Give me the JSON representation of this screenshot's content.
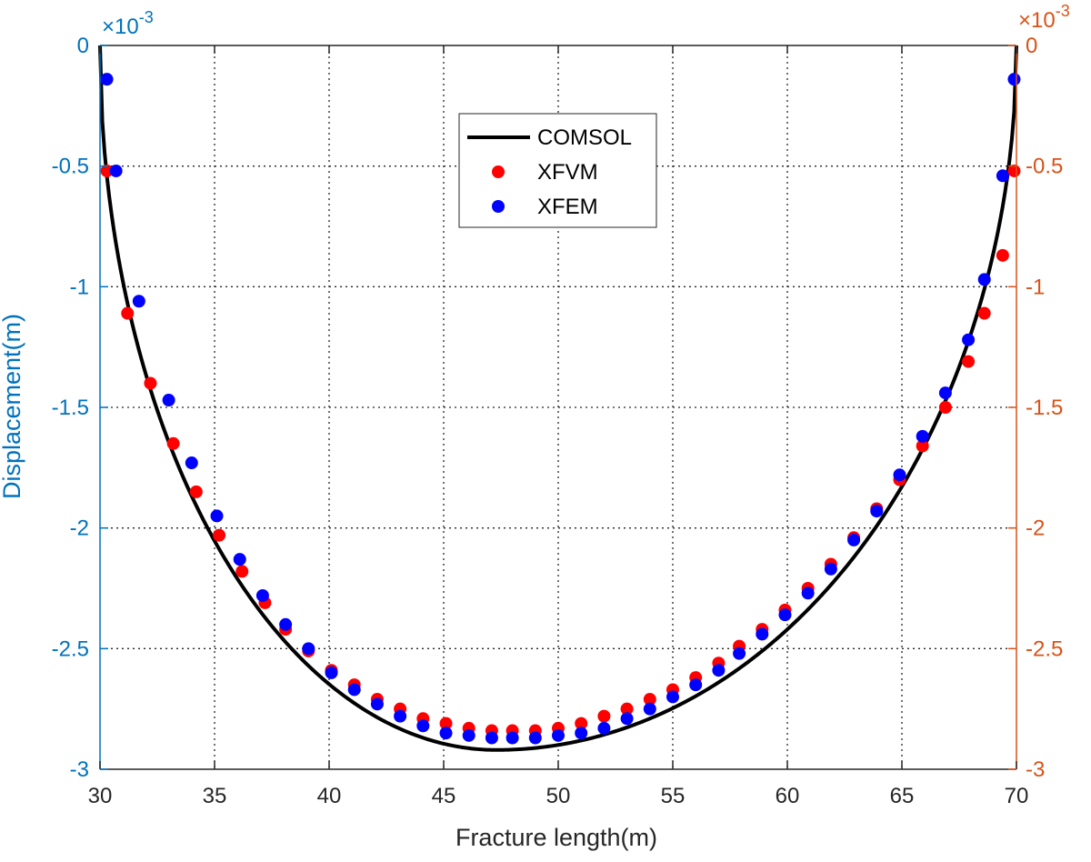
{
  "chart_data": {
    "type": "line",
    "xlabel": "Fracture length(m)",
    "ylabel": "Displacement(m)",
    "xlim": [
      30,
      70
    ],
    "ylim_left": [
      -0.003,
      0
    ],
    "ylim_right": [
      -0.003,
      0
    ],
    "x_ticks": [
      30,
      35,
      40,
      45,
      50,
      55,
      60,
      65,
      70
    ],
    "y_ticks_left": [
      "0",
      "-0.5",
      "-1",
      "-1.5",
      "-2",
      "-2.5",
      "-3"
    ],
    "y_ticks_right": [
      "0",
      "-0.5",
      "-1",
      "-1.5",
      "-2",
      "-2.5",
      "-3"
    ],
    "y_tick_values": [
      0,
      -0.5,
      -1,
      -1.5,
      -2,
      -2.5,
      -3
    ],
    "y_exponent_left": "×10",
    "y_exponent_left_power": "-3",
    "y_exponent_right": "×10",
    "y_exponent_right_power": "-3",
    "grid": true,
    "legend_position": "top-center",
    "colors": {
      "left_axis": "#0072BD",
      "right_axis": "#D95319",
      "comsol": "#000000",
      "xfvm": "#FF0000",
      "xfem": "#0000FF"
    },
    "series": [
      {
        "name": "COMSOL",
        "style": "line",
        "analytic": "semi-ellipse",
        "params": {
          "x_start": 30,
          "x_end": 70,
          "x_min": 47.3,
          "y_min": -2.92
        }
      },
      {
        "name": "XFVM",
        "style": "marker",
        "x": [
          30.3,
          31.2,
          32.2,
          33.2,
          34.2,
          35.2,
          36.2,
          37.2,
          38.1,
          39.1,
          40.1,
          41.1,
          42.1,
          43.1,
          44.1,
          45.1,
          46.1,
          47.1,
          48.0,
          49.0,
          50.0,
          51.0,
          52.0,
          53.0,
          54.0,
          55.0,
          56.0,
          57.0,
          57.9,
          58.9,
          59.9,
          60.9,
          61.9,
          62.9,
          63.9,
          64.9,
          65.9,
          66.9,
          67.9,
          68.6,
          69.4,
          69.9
        ],
        "y": [
          -0.52,
          -1.11,
          -1.4,
          -1.65,
          -1.85,
          -2.03,
          -2.18,
          -2.31,
          -2.42,
          -2.51,
          -2.59,
          -2.65,
          -2.71,
          -2.75,
          -2.79,
          -2.81,
          -2.83,
          -2.84,
          -2.84,
          -2.84,
          -2.83,
          -2.81,
          -2.78,
          -2.75,
          -2.71,
          -2.67,
          -2.62,
          -2.56,
          -2.49,
          -2.42,
          -2.34,
          -2.25,
          -2.15,
          -2.04,
          -1.92,
          -1.8,
          -1.66,
          -1.5,
          -1.31,
          -1.11,
          -0.87,
          -0.52
        ]
      },
      {
        "name": "XFEM",
        "style": "marker",
        "x": [
          30.3,
          30.7,
          31.7,
          33.0,
          34.0,
          35.1,
          36.1,
          37.1,
          38.1,
          39.1,
          40.1,
          41.1,
          42.1,
          43.1,
          44.1,
          45.1,
          46.1,
          47.1,
          48.0,
          49.0,
          50.0,
          51.0,
          52.0,
          53.0,
          54.0,
          55.0,
          56.0,
          57.0,
          57.9,
          58.9,
          59.9,
          60.9,
          61.9,
          62.9,
          63.9,
          64.9,
          65.9,
          66.9,
          67.9,
          68.6,
          69.4,
          69.9
        ],
        "y": [
          -0.14,
          -0.52,
          -1.06,
          -1.47,
          -1.73,
          -1.95,
          -2.13,
          -2.28,
          -2.4,
          -2.5,
          -2.6,
          -2.67,
          -2.73,
          -2.78,
          -2.82,
          -2.85,
          -2.86,
          -2.87,
          -2.87,
          -2.87,
          -2.86,
          -2.85,
          -2.83,
          -2.79,
          -2.75,
          -2.7,
          -2.65,
          -2.59,
          -2.52,
          -2.44,
          -2.36,
          -2.27,
          -2.17,
          -2.05,
          -1.93,
          -1.78,
          -1.62,
          -1.44,
          -1.22,
          -0.97,
          -0.54,
          -0.14
        ]
      }
    ]
  }
}
